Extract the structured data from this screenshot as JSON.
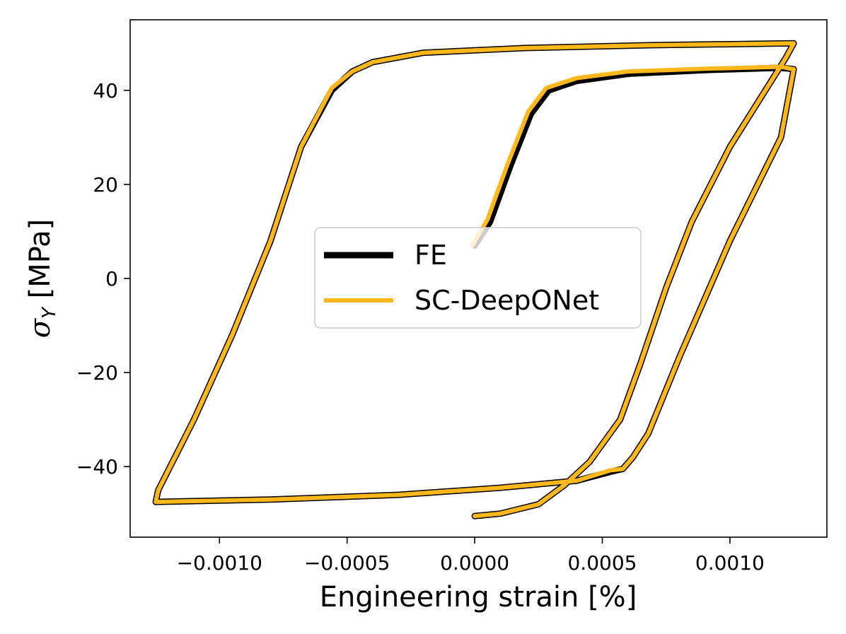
{
  "chart_data": {
    "type": "line",
    "title": "",
    "xlabel": "Engineering strain [%]",
    "ylabel": "σY [MPa]",
    "xlim": [
      -0.00135,
      0.00138
    ],
    "ylim": [
      -55,
      55
    ],
    "xticks": [
      -0.001,
      -0.0005,
      0.0,
      0.0005,
      0.001
    ],
    "xtick_labels": [
      "−0.0010",
      "−0.0005",
      "0.0000",
      "0.0005",
      "0.0010"
    ],
    "yticks": [
      -40,
      -20,
      0,
      20,
      40
    ],
    "ytick_labels": [
      "−40",
      "−20",
      "0",
      "20",
      "40"
    ],
    "grid": false,
    "legend_position": "center",
    "series": [
      {
        "name": "FE",
        "color": "#000000",
        "x": [
          0.0,
          6e-05,
          0.00014,
          0.00022,
          0.00029,
          0.0004,
          0.0006,
          0.0009,
          0.0012,
          0.00125,
          0.0012,
          0.001,
          0.0008,
          0.00068,
          0.00062,
          0.00058,
          0.00054,
          0.0004,
          0.0001,
          -0.0003,
          -0.0008,
          -0.00125,
          -0.00124,
          -0.0011,
          -0.00095,
          -0.0008,
          -0.00068,
          -0.00056,
          -0.00048,
          -0.0004,
          -0.0002,
          0.0002,
          0.0007,
          0.00125,
          0.00122,
          0.001,
          0.00085,
          0.00075,
          0.00065,
          0.00057,
          0.00045,
          0.00035,
          0.00025,
          0.0001,
          0.0
        ],
        "y": [
          7,
          12,
          24,
          35,
          40,
          42,
          43.5,
          44.3,
          44.8,
          44.5,
          30,
          8,
          -17,
          -33,
          -38,
          -40.5,
          -41,
          -43,
          -44.5,
          -46,
          -47,
          -47.5,
          -45,
          -30,
          -12,
          8,
          28,
          40,
          44,
          46,
          48,
          49,
          49.6,
          50,
          47,
          28,
          12,
          -2,
          -18,
          -30,
          -39,
          -44,
          -48,
          -50,
          -50.5
        ]
      },
      {
        "name": "SC-DeepONet",
        "color": "#ffb81c",
        "x": [
          -1e-05,
          5e-05,
          0.00013,
          0.00021,
          0.00028,
          0.0004,
          0.0006,
          0.0009,
          0.0012,
          0.00125,
          0.0012,
          0.001,
          0.0008,
          0.00068,
          0.00062,
          0.00058,
          0.00053,
          0.0004,
          0.0001,
          -0.0003,
          -0.0008,
          -0.00125,
          -0.00124,
          -0.0011,
          -0.00095,
          -0.0008,
          -0.00068,
          -0.00056,
          -0.00048,
          -0.0004,
          -0.0002,
          0.0002,
          0.0007,
          0.00125,
          0.00122,
          0.001,
          0.00085,
          0.00075,
          0.00065,
          0.00057,
          0.00045,
          0.00035,
          0.00025,
          0.0001,
          0.0
        ],
        "y": [
          7,
          12.5,
          24.5,
          35.5,
          40.5,
          42.6,
          44,
          44.6,
          45,
          44.5,
          30,
          8,
          -17,
          -33,
          -38,
          -40.5,
          -40.8,
          -43,
          -44.5,
          -46,
          -47,
          -47.5,
          -45,
          -30,
          -12,
          8,
          28,
          40.5,
          44,
          46,
          48,
          49,
          49.6,
          50,
          47,
          28,
          12,
          -2,
          -18,
          -30,
          -39,
          -44,
          -48,
          -50,
          -50.5
        ]
      }
    ],
    "legend": [
      {
        "label": "FE",
        "color": "#000000"
      },
      {
        "label": "SC-DeepONet",
        "color": "#ffb81c"
      }
    ]
  }
}
